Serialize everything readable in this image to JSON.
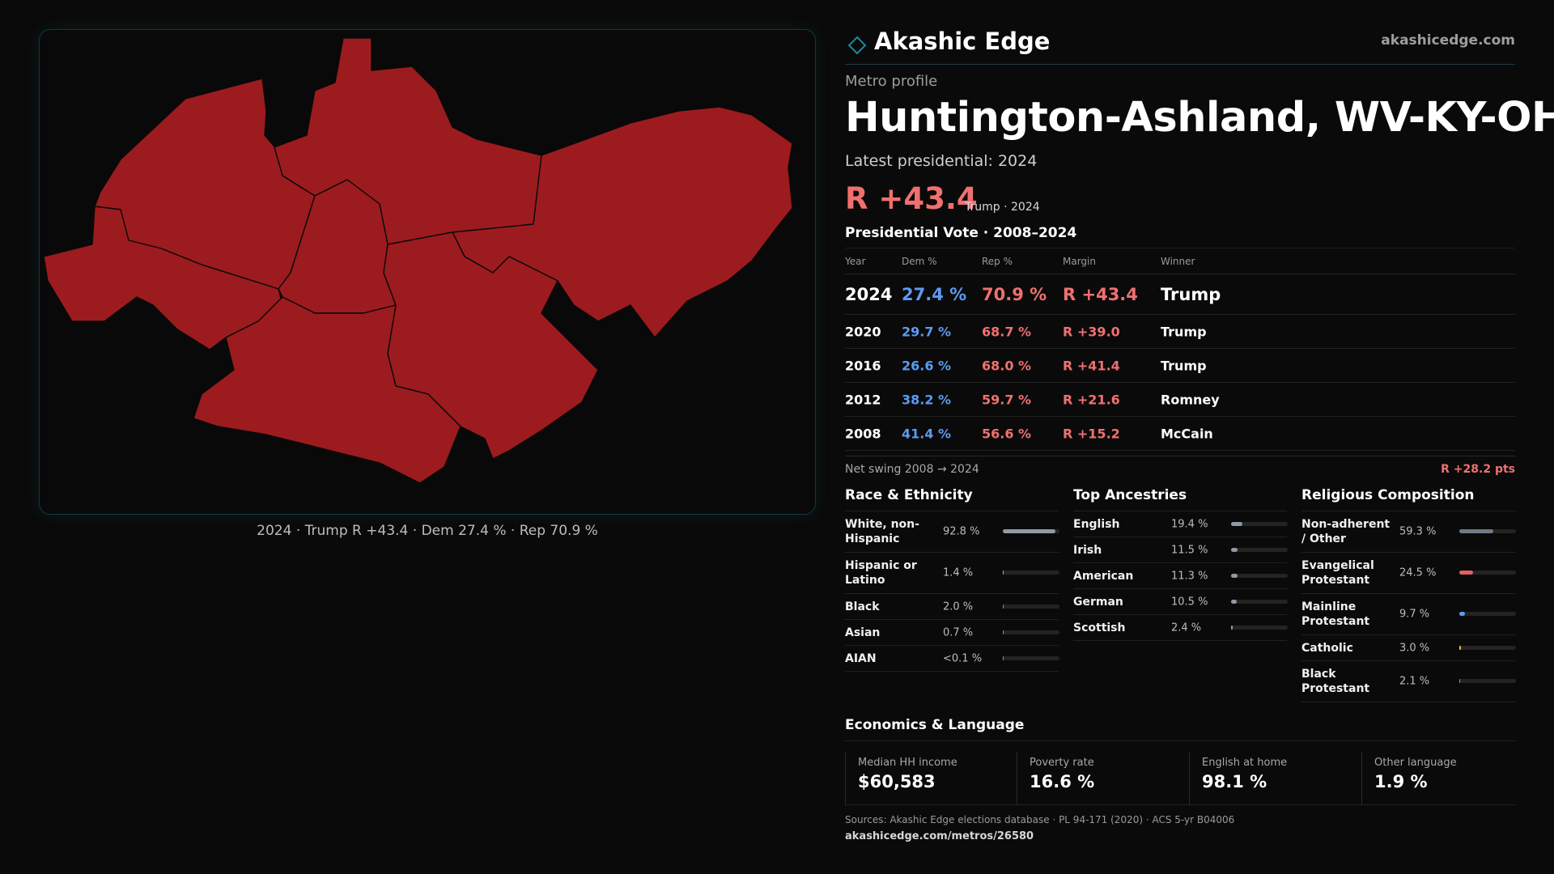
{
  "brand": {
    "name": "Akashic Edge",
    "url": "akashicedge.com",
    "accent": "#1b8a9a"
  },
  "profile": {
    "eyebrow": "Metro profile",
    "title": "Huntington-Ashland, WV-KY-OH",
    "latest": "Latest presidential: 2024",
    "margin": "R +43.4",
    "margin_sub": "Trump · 2024"
  },
  "map": {
    "caption": "2024 · Trump R +43.4 · Dem 27.4 % · Rep 70.9 %",
    "county_color": "#9c1b1e"
  },
  "vote": {
    "title": "Presidential Vote · 2008–2024",
    "headers": {
      "year": "Year",
      "dem": "Dem %",
      "rep": "Rep %",
      "margin": "Margin",
      "winner": "Winner"
    },
    "rows": [
      {
        "year": "2024",
        "dem": "27.4 %",
        "rep": "70.9 %",
        "margin": "R +43.4",
        "winner": "Trump"
      },
      {
        "year": "2020",
        "dem": "29.7 %",
        "rep": "68.7 %",
        "margin": "R +39.0",
        "winner": "Trump"
      },
      {
        "year": "2016",
        "dem": "26.6 %",
        "rep": "68.0 %",
        "margin": "R +41.4",
        "winner": "Trump"
      },
      {
        "year": "2012",
        "dem": "38.2 %",
        "rep": "59.7 %",
        "margin": "R +21.6",
        "winner": "Romney"
      },
      {
        "year": "2008",
        "dem": "41.4 %",
        "rep": "56.6 %",
        "margin": "R +15.2",
        "winner": "McCain"
      }
    ],
    "swing_label": "Net swing 2008 → 2024",
    "swing_value": "R +28.2 pts"
  },
  "race": {
    "title": "Race & Ethnicity",
    "items": [
      {
        "label": "White, non-Hispanic",
        "value": "92.8 %",
        "share": 0.928,
        "color": "#8f9aa8"
      },
      {
        "label": "Hispanic or Latino",
        "value": "1.4 %",
        "share": 0.014,
        "color": "#e8a640"
      },
      {
        "label": "Black",
        "value": "2.0 %",
        "share": 0.02,
        "color": "#9b7be8"
      },
      {
        "label": "Asian",
        "value": "0.7 %",
        "share": 0.007,
        "color": "#3fb6a8"
      },
      {
        "label": "AIAN",
        "value": "<0.1 %",
        "share": 0.0,
        "color": "#8f9aa8"
      }
    ]
  },
  "ancestry": {
    "title": "Top Ancestries",
    "items": [
      {
        "label": "English",
        "value": "19.4 %",
        "share": 0.194,
        "color": "#8f9aa8"
      },
      {
        "label": "Irish",
        "value": "11.5 %",
        "share": 0.115,
        "color": "#8f9aa8"
      },
      {
        "label": "American",
        "value": "11.3 %",
        "share": 0.113,
        "color": "#8f9aa8"
      },
      {
        "label": "German",
        "value": "10.5 %",
        "share": 0.105,
        "color": "#8f9aa8"
      },
      {
        "label": "Scottish",
        "value": "2.4 %",
        "share": 0.024,
        "color": "#8f9aa8"
      }
    ]
  },
  "religion": {
    "title": "Religious Composition",
    "items": [
      {
        "label": "Non-adherent / Other",
        "value": "59.3 %",
        "share": 0.593,
        "color": "#6f7a88"
      },
      {
        "label": "Evangelical Protestant",
        "value": "24.5 %",
        "share": 0.245,
        "color": "#e06060"
      },
      {
        "label": "Mainline Protestant",
        "value": "9.7 %",
        "share": 0.097,
        "color": "#5b9bf0"
      },
      {
        "label": "Catholic",
        "value": "3.0 %",
        "share": 0.03,
        "color": "#e8c040"
      },
      {
        "label": "Black Protestant",
        "value": "2.1 %",
        "share": 0.021,
        "color": "#8f9aa8"
      }
    ]
  },
  "economics": {
    "title": "Economics & Language",
    "cards": [
      {
        "label": "Median HH income",
        "value": "$60,583"
      },
      {
        "label": "Poverty rate",
        "value": "16.6 %"
      },
      {
        "label": "English at home",
        "value": "98.1 %"
      },
      {
        "label": "Other language",
        "value": "1.9 %"
      }
    ]
  },
  "footer": {
    "sources": "Sources: Akashic Edge elections database · PL 94-171 (2020) · ACS 5-yr B04006",
    "url": "akashicedge.com/metros/26580"
  }
}
